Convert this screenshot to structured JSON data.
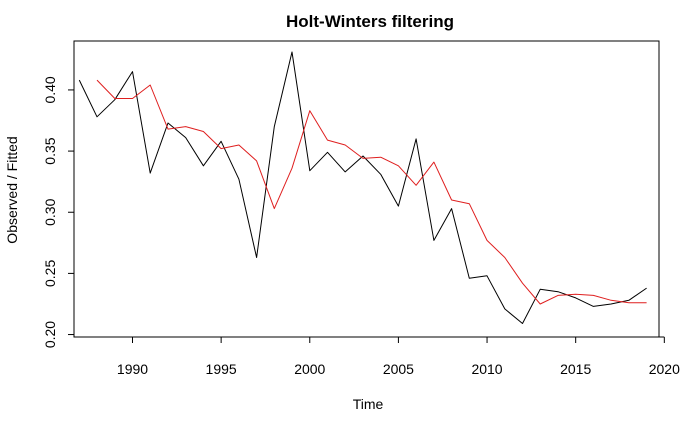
{
  "colors": {
    "observed": "#000000",
    "fitted": "#df1f1f",
    "background": "#ffffff",
    "axis": "#000000"
  },
  "chart_data": {
    "type": "line",
    "title": "Holt-Winters filtering",
    "xlabel": "Time",
    "ylabel": "Observed / Fitted",
    "xlim": [
      1986.7,
      2019.7
    ],
    "ylim": [
      0.198,
      0.44
    ],
    "x_ticks": [
      1990,
      1995,
      2000,
      2005,
      2010,
      2015,
      2020
    ],
    "x_tick_labels": [
      "1990",
      "1995",
      "2000",
      "2005",
      "2010",
      "2015",
      "2020"
    ],
    "y_ticks": [
      0.2,
      0.25,
      0.3,
      0.35,
      0.4
    ],
    "y_tick_labels": [
      "0.20",
      "0.25",
      "0.30",
      "0.35",
      "0.40"
    ],
    "grid": false,
    "legend": "none",
    "series": [
      {
        "key": "observed",
        "x": [
          1987,
          1988,
          1989,
          1990,
          1991,
          1992,
          1993,
          1994,
          1995,
          1996,
          1997,
          1998,
          1999,
          2000,
          2001,
          2002,
          2003,
          2004,
          2005,
          2006,
          2007,
          2008,
          2009,
          2010,
          2011,
          2012,
          2013,
          2014,
          2015,
          2016,
          2017,
          2018,
          2019
        ],
        "values": [
          0.408,
          0.378,
          0.392,
          0.415,
          0.332,
          0.373,
          0.361,
          0.338,
          0.358,
          0.327,
          0.263,
          0.37,
          0.431,
          0.334,
          0.349,
          0.333,
          0.346,
          0.331,
          0.305,
          0.36,
          0.277,
          0.303,
          0.246,
          0.248,
          0.221,
          0.209,
          0.237,
          0.235,
          0.23,
          0.223,
          0.225,
          0.228,
          0.238
        ]
      },
      {
        "key": "fitted",
        "x": [
          1988,
          1989,
          1990,
          1991,
          1992,
          1993,
          1994,
          1995,
          1996,
          1997,
          1998,
          1999,
          2000,
          2001,
          2002,
          2003,
          2004,
          2005,
          2006,
          2007,
          2008,
          2009,
          2010,
          2011,
          2012,
          2013,
          2014,
          2015,
          2016,
          2017,
          2018,
          2019
        ],
        "values": [
          0.408,
          0.393,
          0.393,
          0.404,
          0.368,
          0.37,
          0.366,
          0.352,
          0.355,
          0.342,
          0.303,
          0.336,
          0.383,
          0.359,
          0.355,
          0.344,
          0.345,
          0.338,
          0.322,
          0.341,
          0.31,
          0.307,
          0.277,
          0.263,
          0.242,
          0.225,
          0.232,
          0.233,
          0.232,
          0.228,
          0.226,
          0.226
        ]
      }
    ]
  }
}
